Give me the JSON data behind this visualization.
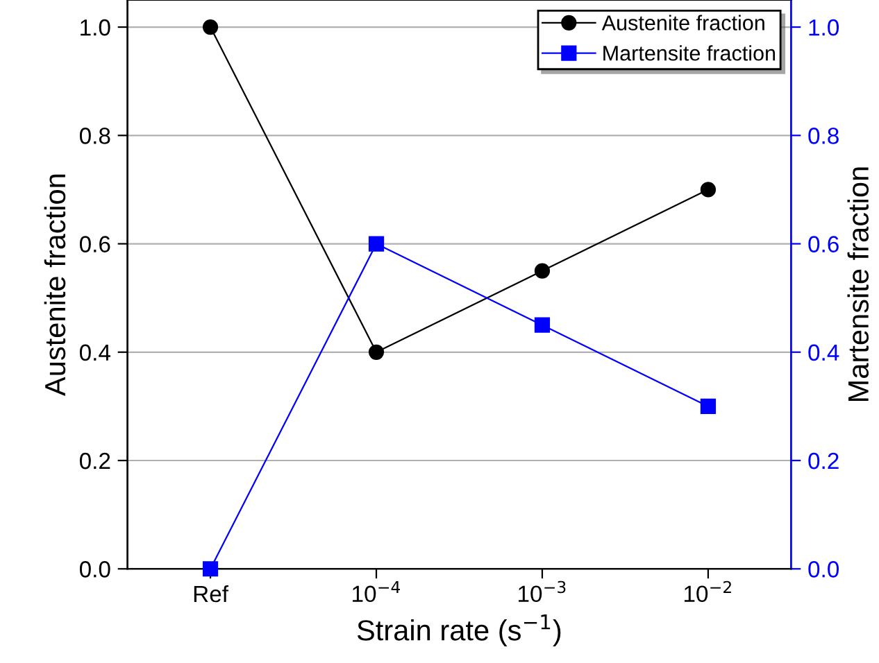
{
  "chart_data": {
    "type": "line",
    "xlabel": "Strain rate (s$^{−1}$)",
    "ylabel": "Austenite fraction",
    "y2label": "Martensite fraction",
    "categories": [
      "Ref",
      "10$^{−4}$",
      "10$^{−3}$",
      "10$^{−2}$"
    ],
    "series": [
      {
        "name": "Austenite fraction",
        "color": "#000000",
        "values": [
          1.0,
          0.4,
          0.55,
          0.7
        ],
        "marker": "circle"
      },
      {
        "name": "Martensite fraction",
        "color": "#0000ff",
        "values": [
          0.0,
          0.6,
          0.45,
          0.3
        ],
        "marker": "square",
        "axis": "y2"
      }
    ],
    "ylim": [
      0,
      1.05
    ],
    "yticks": [
      {
        "value": 0,
        "label": "0.0"
      },
      0.2,
      0.4,
      0.6,
      0.8,
      {
        "value": 1,
        "label": "1.0"
      }
    ],
    "y2lim": [
      0,
      1.05
    ],
    "y2ticks": [
      {
        "value": 0,
        "label": "0.0"
      },
      0.2,
      0.4,
      0.6,
      0.8,
      {
        "value": 1,
        "label": "1.0"
      }
    ],
    "grid": "y",
    "legend": "top right",
    "line_style": "solid"
  }
}
